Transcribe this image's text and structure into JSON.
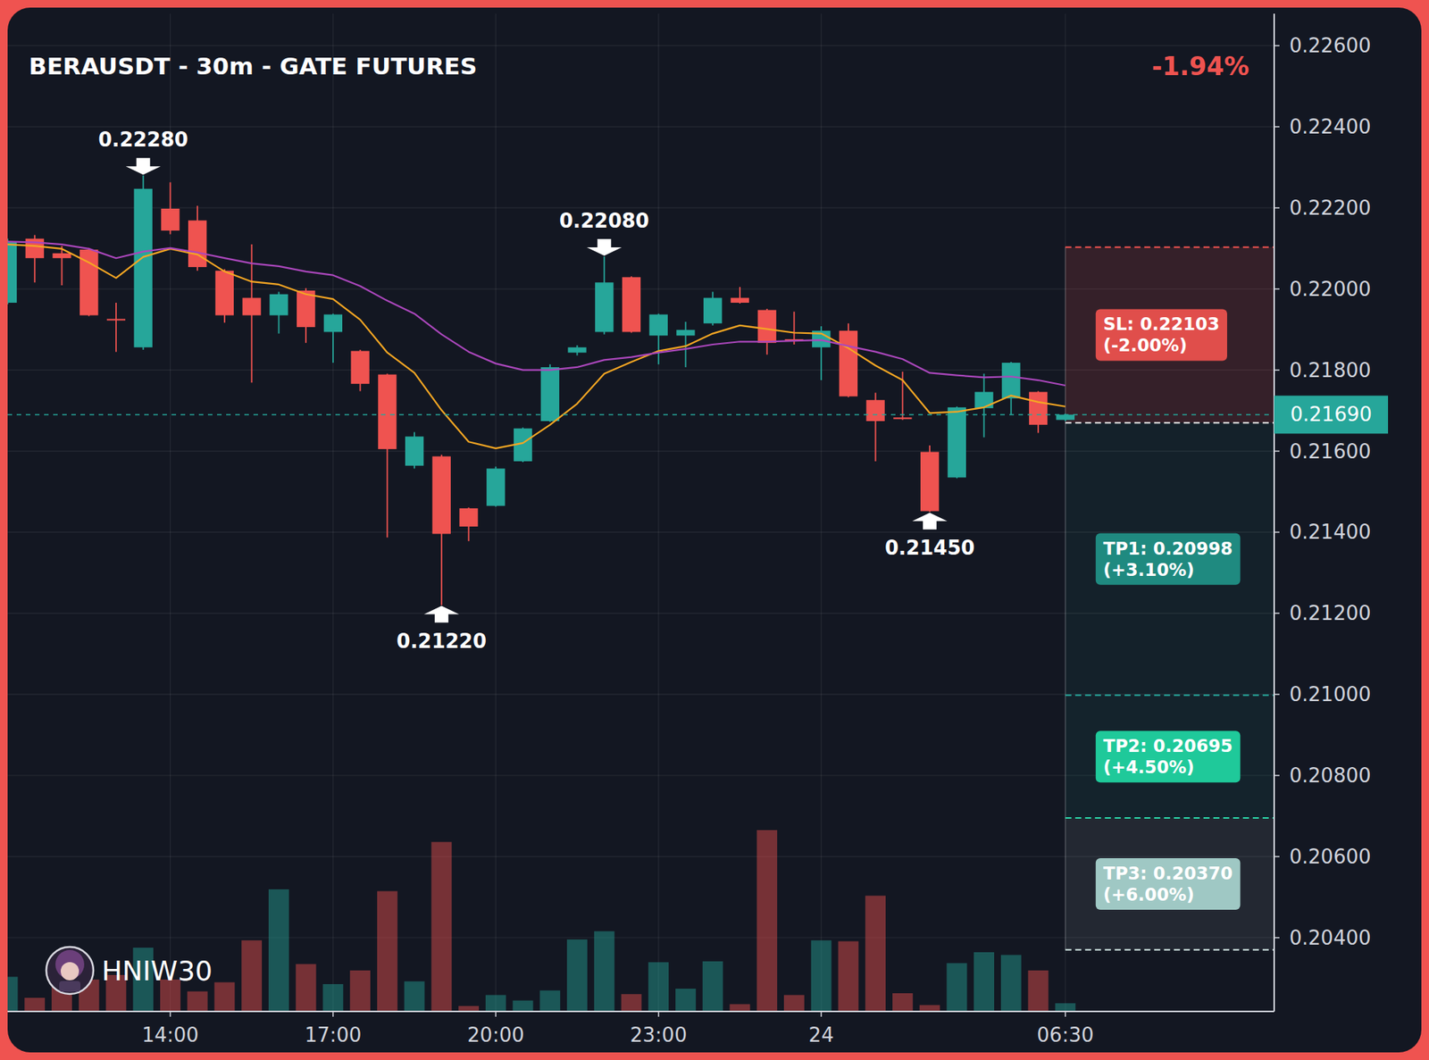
{
  "chart_data": {
    "type": "candlestick",
    "title": "BERAUSDT - 30m - GATE FUTURES",
    "change_label": "-1.94%",
    "categories": [
      null,
      null,
      null,
      null,
      null,
      null,
      "14:00",
      null,
      null,
      null,
      null,
      null,
      "17:00",
      null,
      null,
      null,
      null,
      null,
      "20:00",
      null,
      null,
      null,
      null,
      null,
      "23:00",
      null,
      null,
      null,
      null,
      null,
      "24",
      null,
      null,
      null,
      null,
      null,
      null,
      null,
      null,
      "06:30"
    ],
    "open": [
      0.21966,
      0.22124,
      0.22088,
      0.22097,
      0.21926,
      0.21856,
      0.22198,
      0.22169,
      0.22045,
      0.21978,
      0.21935,
      0.21996,
      0.21894,
      0.21847,
      0.21789,
      0.21564,
      0.21587,
      0.21459,
      0.21465,
      0.21575,
      0.21674,
      0.21843,
      0.21894,
      0.22029,
      0.21885,
      0.21885,
      0.21915,
      0.21978,
      0.21948,
      0.21876,
      0.21856,
      0.21897,
      0.21726,
      0.21683,
      0.21598,
      0.21535,
      0.21706,
      0.2173,
      0.21746,
      0.21677
    ],
    "high": [
      0.22124,
      0.22133,
      0.22106,
      0.22101,
      0.21966,
      0.2228,
      0.22263,
      0.22205,
      0.22049,
      0.2211,
      0.21993,
      0.22002,
      0.21939,
      0.2185,
      0.21791,
      0.21647,
      0.21591,
      0.21461,
      0.21562,
      0.21658,
      0.21814,
      0.21861,
      0.2208,
      0.22031,
      0.21939,
      0.21919,
      0.21993,
      0.22005,
      0.21951,
      0.21944,
      0.21908,
      0.21915,
      0.21744,
      0.21796,
      0.21614,
      0.2171,
      0.21791,
      0.2182,
      0.21748,
      0.21692
    ],
    "low": [
      0.21962,
      0.22016,
      0.22009,
      0.21933,
      0.21845,
      0.2185,
      0.22135,
      0.22045,
      0.21917,
      0.21769,
      0.2189,
      0.21867,
      0.21818,
      0.21748,
      0.21387,
      0.21557,
      0.2122,
      0.21378,
      0.21463,
      0.21573,
      0.21672,
      0.21836,
      0.21888,
      0.21892,
      0.21814,
      0.21807,
      0.2191,
      0.21964,
      0.21838,
      0.21863,
      0.21775,
      0.21733,
      0.21575,
      0.21677,
      0.2145,
      0.21533,
      0.21634,
      0.2169,
      0.21645,
      0.21674
    ],
    "close": [
      0.22117,
      0.22076,
      0.22076,
      0.21935,
      0.21924,
      0.22247,
      0.22144,
      0.22054,
      0.21935,
      0.21935,
      0.21987,
      0.21906,
      0.21937,
      0.21766,
      0.21605,
      0.21636,
      0.21396,
      0.21414,
      0.21557,
      0.21656,
      0.21807,
      0.21856,
      0.22016,
      0.21894,
      0.21937,
      0.21899,
      0.21978,
      0.21966,
      0.21867,
      0.21872,
      0.21897,
      0.21735,
      0.21674,
      0.21679,
      0.21452,
      0.21708,
      0.21746,
      0.21818,
      0.21665,
      0.2169
    ],
    "volume": [
      38,
      15,
      28,
      35,
      40,
      70,
      35,
      22,
      32,
      78,
      134,
      52,
      30,
      45,
      132,
      33,
      186,
      6,
      18,
      12,
      23,
      79,
      88,
      19,
      54,
      25,
      55,
      8,
      199,
      18,
      78,
      77,
      127,
      20,
      7,
      53,
      65,
      62,
      45,
      9
    ],
    "volume_ylim": [
      0,
      1095
    ],
    "series": [
      {
        "type": "line",
        "color": "#f5a623",
        "values": [
          0.2211,
          0.22106,
          0.22099,
          0.22065,
          0.22027,
          0.22079,
          0.22099,
          0.22085,
          0.22043,
          0.22018,
          0.22011,
          0.21987,
          0.21975,
          0.21924,
          0.21843,
          0.21793,
          0.21701,
          0.21623,
          0.21607,
          0.2162,
          0.21665,
          0.21717,
          0.21791,
          0.2182,
          0.21847,
          0.21859,
          0.2189,
          0.2191,
          0.21901,
          0.21892,
          0.2189,
          0.21854,
          0.21811,
          0.21775,
          0.21694,
          0.21697,
          0.21708,
          0.21737,
          0.21721,
          0.2171
        ]
      },
      {
        "type": "line",
        "color": "#ab47bc",
        "values": [
          0.22117,
          0.22115,
          0.2211,
          0.22099,
          0.22076,
          0.22092,
          0.22101,
          0.2209,
          0.22076,
          0.22063,
          0.22056,
          0.22043,
          0.22034,
          0.22007,
          0.21971,
          0.21939,
          0.21888,
          0.21845,
          0.21816,
          0.218,
          0.218,
          0.21807,
          0.21825,
          0.21832,
          0.21843,
          0.21852,
          0.21863,
          0.2187,
          0.2187,
          0.21872,
          0.21874,
          0.21859,
          0.21845,
          0.21827,
          0.21793,
          0.21787,
          0.21782,
          0.21784,
          0.21775,
          0.21762
        ]
      }
    ],
    "xlim": [
      0,
      46.7
    ],
    "ylim": [
      0.20218,
      0.22679
    ],
    "yticks": [
      {
        "value": 0.204,
        "label": "0.20400"
      },
      {
        "value": 0.206,
        "label": "0.20600"
      },
      {
        "value": 0.208,
        "label": "0.20800"
      },
      {
        "value": 0.21,
        "label": "0.21000"
      },
      {
        "value": 0.212,
        "label": "0.21200"
      },
      {
        "value": 0.214,
        "label": "0.21400"
      },
      {
        "value": 0.216,
        "label": "0.21600"
      },
      {
        "value": 0.218,
        "label": "0.21800"
      },
      {
        "value": 0.22,
        "label": "0.22000"
      },
      {
        "value": 0.222,
        "label": "0.22200"
      },
      {
        "value": 0.224,
        "label": "0.22400"
      },
      {
        "value": 0.226,
        "label": "0.22600"
      }
    ],
    "grid": true,
    "last_price": {
      "value": 0.2169,
      "label": "0.21690"
    },
    "annotations": [
      {
        "x": 5,
        "value": 0.2228,
        "label": "0.22280",
        "position": "above"
      },
      {
        "x": 22,
        "value": 0.2208,
        "label": "0.22080",
        "position": "above"
      },
      {
        "x": 16,
        "value": 0.2122,
        "label": "0.21220",
        "position": "below"
      },
      {
        "x": 34,
        "value": 0.2145,
        "label": "0.21450",
        "position": "below"
      }
    ],
    "trade": {
      "x": 39,
      "entry": 0.2167,
      "levels": [
        {
          "label": "SL: 0.22103",
          "pct_label": "(-2.00%)",
          "value": 0.22103,
          "color": "#e04e4b"
        },
        {
          "label": "TP1: 0.20998",
          "pct_label": "(+3.10%)",
          "value": 0.20998,
          "color": "#1f8a80"
        },
        {
          "label": "TP2: 0.20695",
          "pct_label": "(+4.50%)",
          "value": 0.20695,
          "color": "#1fc99a"
        },
        {
          "label": "TP3: 0.20370",
          "pct_label": "(+6.00%)",
          "value": 0.2037,
          "color": "#9fc8c4"
        }
      ]
    },
    "watermark": "HNIW30"
  }
}
